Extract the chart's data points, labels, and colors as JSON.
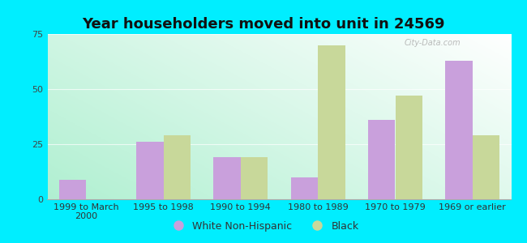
{
  "title": "Year householders moved into unit in 24569",
  "categories": [
    "1999 to March\n2000",
    "1995 to 1998",
    "1990 to 1994",
    "1980 to 1989",
    "1970 to 1979",
    "1969 or earlier"
  ],
  "white_non_hispanic": [
    9,
    26,
    19,
    10,
    36,
    63
  ],
  "black": [
    0,
    29,
    19,
    70,
    47,
    29
  ],
  "white_color": "#c9a0dc",
  "black_color": "#c8d89a",
  "background_outer": "#00eeff",
  "ylim": [
    0,
    75
  ],
  "yticks": [
    0,
    25,
    50,
    75
  ],
  "bar_width": 0.35,
  "title_fontsize": 13,
  "tick_fontsize": 8,
  "legend_fontsize": 9,
  "watermark": "City-Data.com"
}
